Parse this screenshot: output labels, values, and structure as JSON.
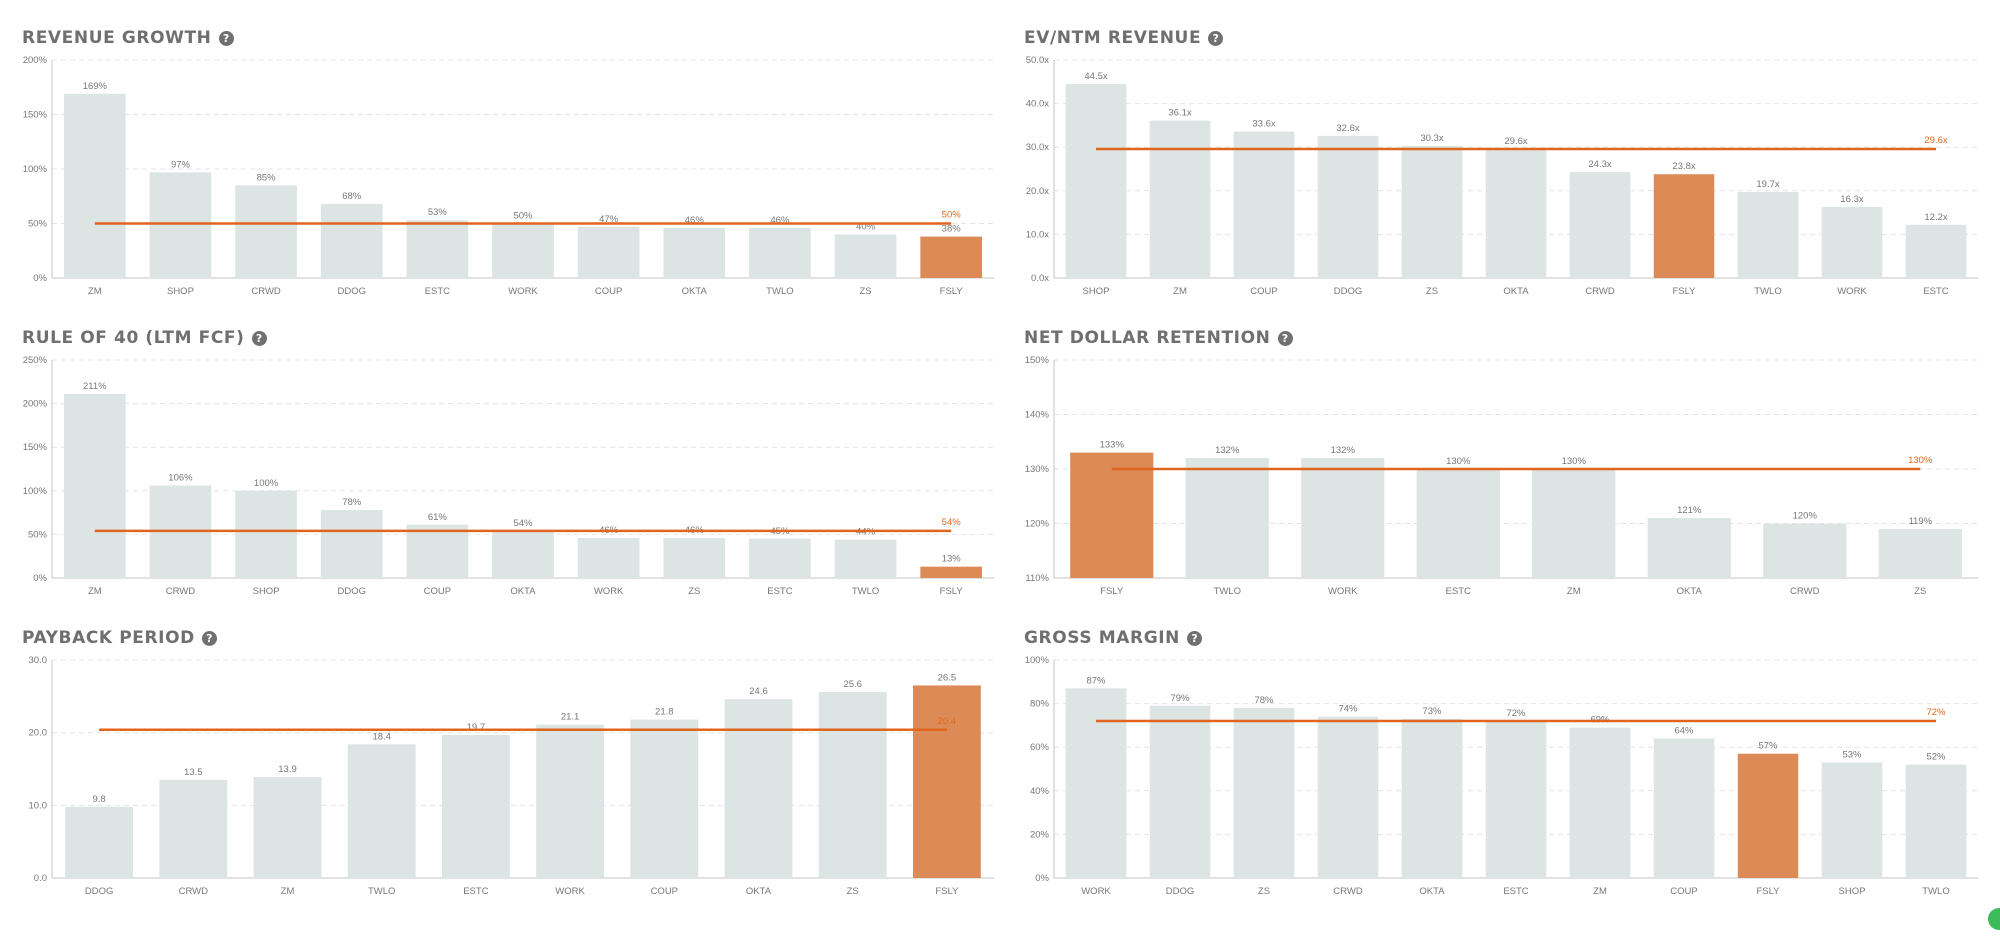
{
  "colors": {
    "bar": "#dce4e4",
    "highlight": "#dc8a56",
    "average_line": "#e0651f",
    "average_label": "#e2681e",
    "grid": "#e4e4e4",
    "axis": "#c4c4c4",
    "label": "#777777",
    "title": "#6f6f6f"
  },
  "help_symbol": "?",
  "chart_data": [
    {
      "id": "revenue-growth",
      "type": "bar",
      "title": "REVENUE GROWTH",
      "categories": [
        "ZM",
        "SHOP",
        "CRWD",
        "DDOG",
        "ESTC",
        "WORK",
        "COUP",
        "OKTA",
        "TWLO",
        "ZS",
        "FSLY"
      ],
      "values": [
        169,
        97,
        85,
        68,
        53,
        50,
        47,
        46,
        46,
        40,
        38
      ],
      "value_labels": [
        "169%",
        "97%",
        "85%",
        "68%",
        "53%",
        "50%",
        "47%",
        "46%",
        "46%",
        "40%",
        "38%"
      ],
      "highlight": "FSLY",
      "yticks": [
        0,
        50,
        100,
        150,
        200
      ],
      "ytick_labels": [
        "0%",
        "50%",
        "100%",
        "150%",
        "200%"
      ],
      "ylim": [
        0,
        200
      ],
      "average": 50,
      "average_label": "50%"
    },
    {
      "id": "ev-ntm-revenue",
      "type": "bar",
      "title": "EV/NTM REVENUE",
      "categories": [
        "SHOP",
        "ZM",
        "COUP",
        "DDOG",
        "ZS",
        "OKTA",
        "CRWD",
        "FSLY",
        "TWLO",
        "WORK",
        "ESTC"
      ],
      "values": [
        44.5,
        36.1,
        33.6,
        32.6,
        30.3,
        29.6,
        24.3,
        23.8,
        19.7,
        16.3,
        12.2
      ],
      "value_labels": [
        "44.5x",
        "36.1x",
        "33.6x",
        "32.6x",
        "30.3x",
        "29.6x",
        "24.3x",
        "23.8x",
        "19.7x",
        "16.3x",
        "12.2x"
      ],
      "highlight": "FSLY",
      "yticks": [
        0,
        10,
        20,
        30,
        40,
        50
      ],
      "ytick_labels": [
        "0.0x",
        "10.0x",
        "20.0x",
        "30.0x",
        "40.0x",
        "50.0x"
      ],
      "ylim": [
        0,
        50
      ],
      "average": 29.6,
      "average_label": "29.6x"
    },
    {
      "id": "rule-of-40",
      "type": "bar",
      "title": "RULE OF 40 (LTM FCF)",
      "categories": [
        "ZM",
        "CRWD",
        "SHOP",
        "DDOG",
        "COUP",
        "OKTA",
        "WORK",
        "ZS",
        "ESTC",
        "TWLO",
        "FSLY"
      ],
      "values": [
        211,
        106,
        100,
        78,
        61,
        54,
        46,
        46,
        45,
        44,
        13
      ],
      "value_labels": [
        "211%",
        "106%",
        "100%",
        "78%",
        "61%",
        "54%",
        "46%",
        "46%",
        "45%",
        "44%",
        "13%"
      ],
      "highlight": "FSLY",
      "yticks": [
        0,
        50,
        100,
        150,
        200,
        250
      ],
      "ytick_labels": [
        "0%",
        "50%",
        "100%",
        "150%",
        "200%",
        "250%"
      ],
      "ylim": [
        0,
        250
      ],
      "average": 54,
      "average_label": "54%"
    },
    {
      "id": "net-dollar-retention",
      "type": "bar",
      "title": "NET DOLLAR RETENTION",
      "categories": [
        "FSLY",
        "TWLO",
        "WORK",
        "ESTC",
        "ZM",
        "OKTA",
        "CRWD",
        "ZS"
      ],
      "values": [
        133,
        132,
        132,
        130,
        130,
        121,
        120,
        119
      ],
      "value_labels": [
        "133%",
        "132%",
        "132%",
        "130%",
        "130%",
        "121%",
        "120%",
        "119%"
      ],
      "highlight": "FSLY",
      "yticks": [
        110,
        120,
        130,
        140,
        150
      ],
      "ytick_labels": [
        "110%",
        "120%",
        "130%",
        "140%",
        "150%"
      ],
      "ylim": [
        110,
        150
      ],
      "average": 130,
      "average_label": "130%"
    },
    {
      "id": "payback-period",
      "type": "bar",
      "title": "PAYBACK PERIOD",
      "categories": [
        "DDOG",
        "CRWD",
        "ZM",
        "TWLO",
        "ESTC",
        "WORK",
        "COUP",
        "OKTA",
        "ZS",
        "FSLY"
      ],
      "values": [
        9.8,
        13.5,
        13.9,
        18.4,
        19.7,
        21.1,
        21.8,
        24.6,
        25.6,
        26.5
      ],
      "value_labels": [
        "9.8",
        "13.5",
        "13.9",
        "18.4",
        "19.7",
        "21.1",
        "21.8",
        "24.6",
        "25.6",
        "26.5"
      ],
      "highlight": "FSLY",
      "yticks": [
        0,
        10,
        20,
        30
      ],
      "ytick_labels": [
        "0.0",
        "10.0",
        "20.0",
        "30.0"
      ],
      "ylim": [
        0,
        30
      ],
      "average": 20.4,
      "average_label": "20.4"
    },
    {
      "id": "gross-margin",
      "type": "bar",
      "title": "GROSS MARGIN",
      "categories": [
        "WORK",
        "DDOG",
        "ZS",
        "CRWD",
        "OKTA",
        "ESTC",
        "ZM",
        "COUP",
        "FSLY",
        "SHOP",
        "TWLO"
      ],
      "values": [
        87,
        79,
        78,
        74,
        73,
        72,
        69,
        64,
        57,
        53,
        52
      ],
      "value_labels": [
        "87%",
        "79%",
        "78%",
        "74%",
        "73%",
        "72%",
        "69%",
        "64%",
        "57%",
        "53%",
        "52%"
      ],
      "highlight": "FSLY",
      "yticks": [
        0,
        20,
        40,
        60,
        80,
        100
      ],
      "ytick_labels": [
        "0%",
        "20%",
        "40%",
        "60%",
        "80%",
        "100%"
      ],
      "ylim": [
        0,
        100
      ],
      "average": 72,
      "average_label": "72%"
    }
  ]
}
